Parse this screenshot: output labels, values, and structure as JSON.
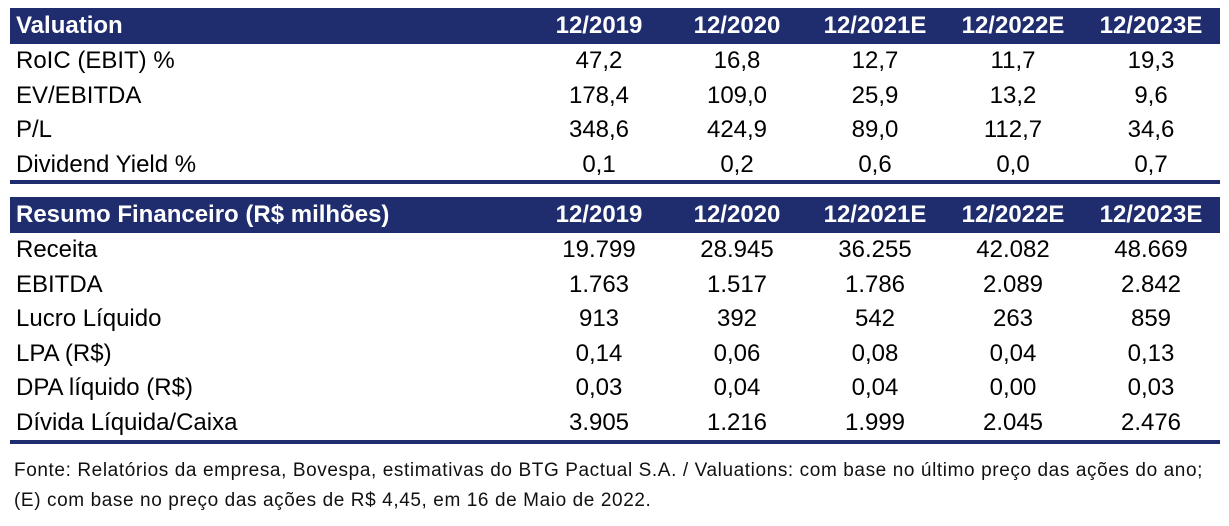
{
  "valuation": {
    "title": "Valuation",
    "years": [
      "12/2019",
      "12/2020",
      "12/2021E",
      "12/2022E",
      "12/2023E"
    ],
    "rows": [
      {
        "label": "RoIC (EBIT) %",
        "values": [
          "47,2",
          "16,8",
          "12,7",
          "11,7",
          "19,3"
        ]
      },
      {
        "label": "EV/EBITDA",
        "values": [
          "178,4",
          "109,0",
          "25,9",
          "13,2",
          "9,6"
        ]
      },
      {
        "label": "P/L",
        "values": [
          "348,6",
          "424,9",
          "89,0",
          "112,7",
          "34,6"
        ]
      },
      {
        "label": "Dividend Yield %",
        "values": [
          "0,1",
          "0,2",
          "0,6",
          "0,0",
          "0,7"
        ]
      }
    ]
  },
  "resumo": {
    "title": "Resumo Financeiro (R$ milhões)",
    "years": [
      "12/2019",
      "12/2020",
      "12/2021E",
      "12/2022E",
      "12/2023E"
    ],
    "rows": [
      {
        "label": "Receita",
        "values": [
          "19.799",
          "28.945",
          "36.255",
          "42.082",
          "48.669"
        ]
      },
      {
        "label": "EBITDA",
        "values": [
          "1.763",
          "1.517",
          "1.786",
          "2.089",
          "2.842"
        ]
      },
      {
        "label": "Lucro Líquido",
        "values": [
          "913",
          "392",
          "542",
          "263",
          "859"
        ]
      },
      {
        "label": "LPA (R$)",
        "values": [
          "0,14",
          "0,06",
          "0,08",
          "0,04",
          "0,13"
        ]
      },
      {
        "label": "DPA líquido (R$)",
        "values": [
          "0,03",
          "0,04",
          "0,04",
          "0,00",
          "0,03"
        ]
      },
      {
        "label": "Dívida Líquida/Caixa",
        "values": [
          "3.905",
          "1.216",
          "1.999",
          "2.045",
          "2.476"
        ]
      }
    ]
  },
  "footnote": "Fonte: Relatórios da empresa, Bovespa, estimativas do BTG Pactual S.A. / Valuations: com base no último preço das ações do ano; (E) com base no preço das ações de R$ 4,45, em 16 de Maio de 2022.",
  "colors": {
    "header_bg": "#1f2c6e",
    "header_text": "#ffffff"
  }
}
